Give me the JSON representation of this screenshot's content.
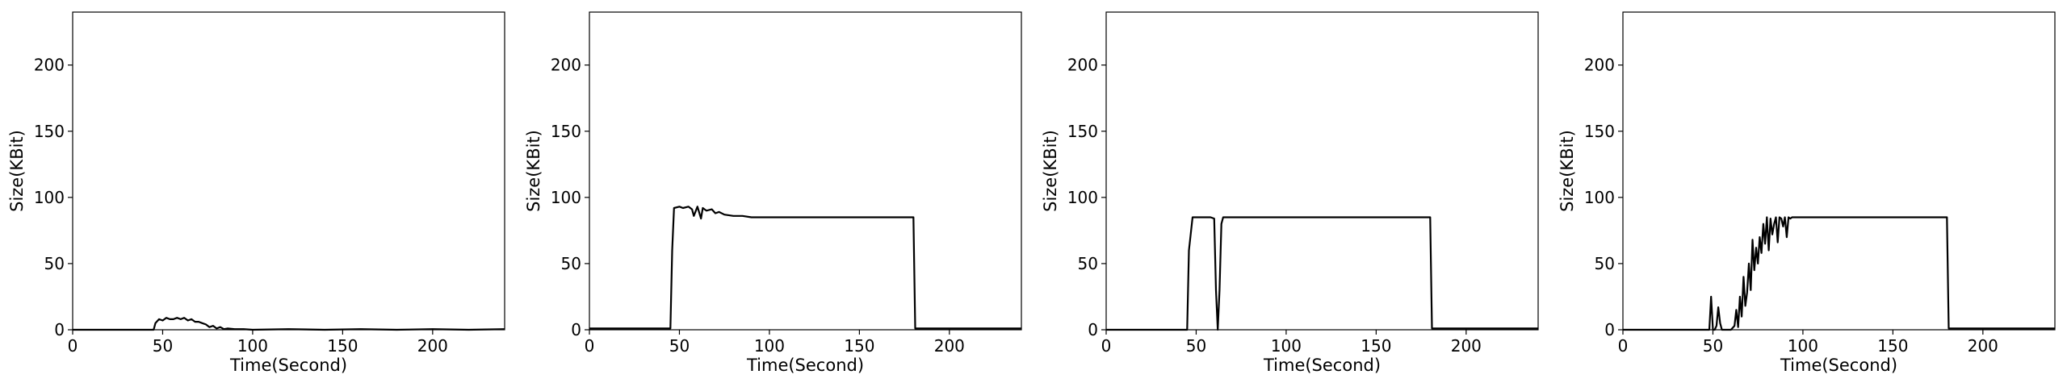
{
  "chart_data": [
    {
      "type": "line",
      "xlabel": "Time(Second)",
      "ylabel": "Size(KBit)",
      "xlim": [
        0,
        240
      ],
      "ylim": [
        0,
        240
      ],
      "xticks": [
        0,
        50,
        100,
        150,
        200
      ],
      "yticks": [
        0,
        50,
        100,
        150,
        200
      ],
      "grid": false,
      "series": [
        {
          "color": "#000000",
          "x": [
            0,
            45,
            46,
            48,
            50,
            52,
            54,
            56,
            58,
            60,
            62,
            64,
            66,
            68,
            70,
            72,
            74,
            76,
            78,
            80,
            82,
            84,
            86,
            90,
            95,
            100,
            120,
            140,
            160,
            180,
            200,
            220,
            240
          ],
          "y": [
            0,
            0,
            5,
            8,
            7,
            9,
            8,
            8,
            9,
            8,
            9,
            7,
            8,
            6,
            6,
            5,
            4,
            2,
            3,
            1,
            2,
            0.5,
            1,
            0.5,
            0.5,
            0,
            0.5,
            0,
            0.5,
            0,
            0.5,
            0,
            0.5
          ]
        }
      ]
    },
    {
      "type": "line",
      "xlabel": "Time(Second)",
      "ylabel": "Size(KBit)",
      "xlim": [
        0,
        240
      ],
      "ylim": [
        0,
        240
      ],
      "xticks": [
        0,
        50,
        100,
        150,
        200
      ],
      "yticks": [
        0,
        50,
        100,
        150,
        200
      ],
      "grid": false,
      "series": [
        {
          "color": "#000000",
          "x": [
            0,
            45,
            46,
            47,
            50,
            52,
            55,
            57,
            58,
            60,
            62,
            63,
            65,
            68,
            70,
            72,
            75,
            80,
            85,
            90,
            100,
            120,
            140,
            160,
            178,
            180,
            181,
            185,
            200,
            220,
            240
          ],
          "y": [
            1,
            1,
            60,
            92,
            93,
            92,
            93,
            91,
            86,
            93,
            84,
            92,
            90,
            91,
            88,
            89,
            87,
            86,
            86,
            85,
            85,
            85,
            85,
            85,
            85,
            85,
            1,
            1,
            1,
            1,
            1
          ]
        }
      ]
    },
    {
      "type": "line",
      "xlabel": "Time(Second)",
      "ylabel": "Size(KBit)",
      "xlim": [
        0,
        240
      ],
      "ylim": [
        0,
        240
      ],
      "xticks": [
        0,
        50,
        100,
        150,
        200
      ],
      "yticks": [
        0,
        50,
        100,
        150,
        200
      ],
      "grid": false,
      "series": [
        {
          "color": "#000000",
          "x": [
            0,
            45,
            46,
            48,
            55,
            58,
            60,
            61,
            62,
            63,
            64,
            65,
            70,
            80,
            100,
            120,
            140,
            160,
            178,
            180,
            181,
            185,
            200,
            220,
            240
          ],
          "y": [
            0,
            0,
            60,
            85,
            85,
            85,
            84,
            30,
            0,
            30,
            80,
            85,
            85,
            85,
            85,
            85,
            85,
            85,
            85,
            85,
            1,
            1,
            1,
            1,
            1
          ]
        }
      ]
    },
    {
      "type": "line",
      "xlabel": "Time(Second)",
      "ylabel": "Size(KBit)",
      "xlim": [
        0,
        240
      ],
      "ylim": [
        0,
        240
      ],
      "xticks": [
        0,
        50,
        100,
        150,
        200
      ],
      "yticks": [
        0,
        50,
        100,
        150,
        200
      ],
      "grid": false,
      "series": [
        {
          "color": "#000000",
          "x": [
            0,
            48,
            49,
            50,
            51,
            52,
            53,
            54,
            55,
            60,
            62,
            63,
            64,
            65,
            66,
            67,
            68,
            69,
            70,
            71,
            72,
            73,
            74,
            75,
            76,
            77,
            78,
            79,
            80,
            81,
            82,
            83,
            84,
            85,
            86,
            87,
            88,
            89,
            90,
            91,
            92,
            93,
            94,
            95,
            100,
            120,
            140,
            160,
            178,
            180,
            181,
            185,
            200,
            220,
            240
          ],
          "y": [
            0,
            0,
            25,
            0,
            0,
            3,
            17,
            5,
            0,
            0,
            3,
            15,
            2,
            25,
            10,
            40,
            18,
            28,
            50,
            30,
            68,
            45,
            62,
            50,
            70,
            58,
            80,
            65,
            85,
            60,
            84,
            72,
            80,
            85,
            66,
            85,
            84,
            78,
            85,
            70,
            85,
            84,
            85,
            85,
            85,
            85,
            85,
            85,
            85,
            85,
            1,
            1,
            1,
            1,
            1
          ]
        }
      ]
    }
  ]
}
